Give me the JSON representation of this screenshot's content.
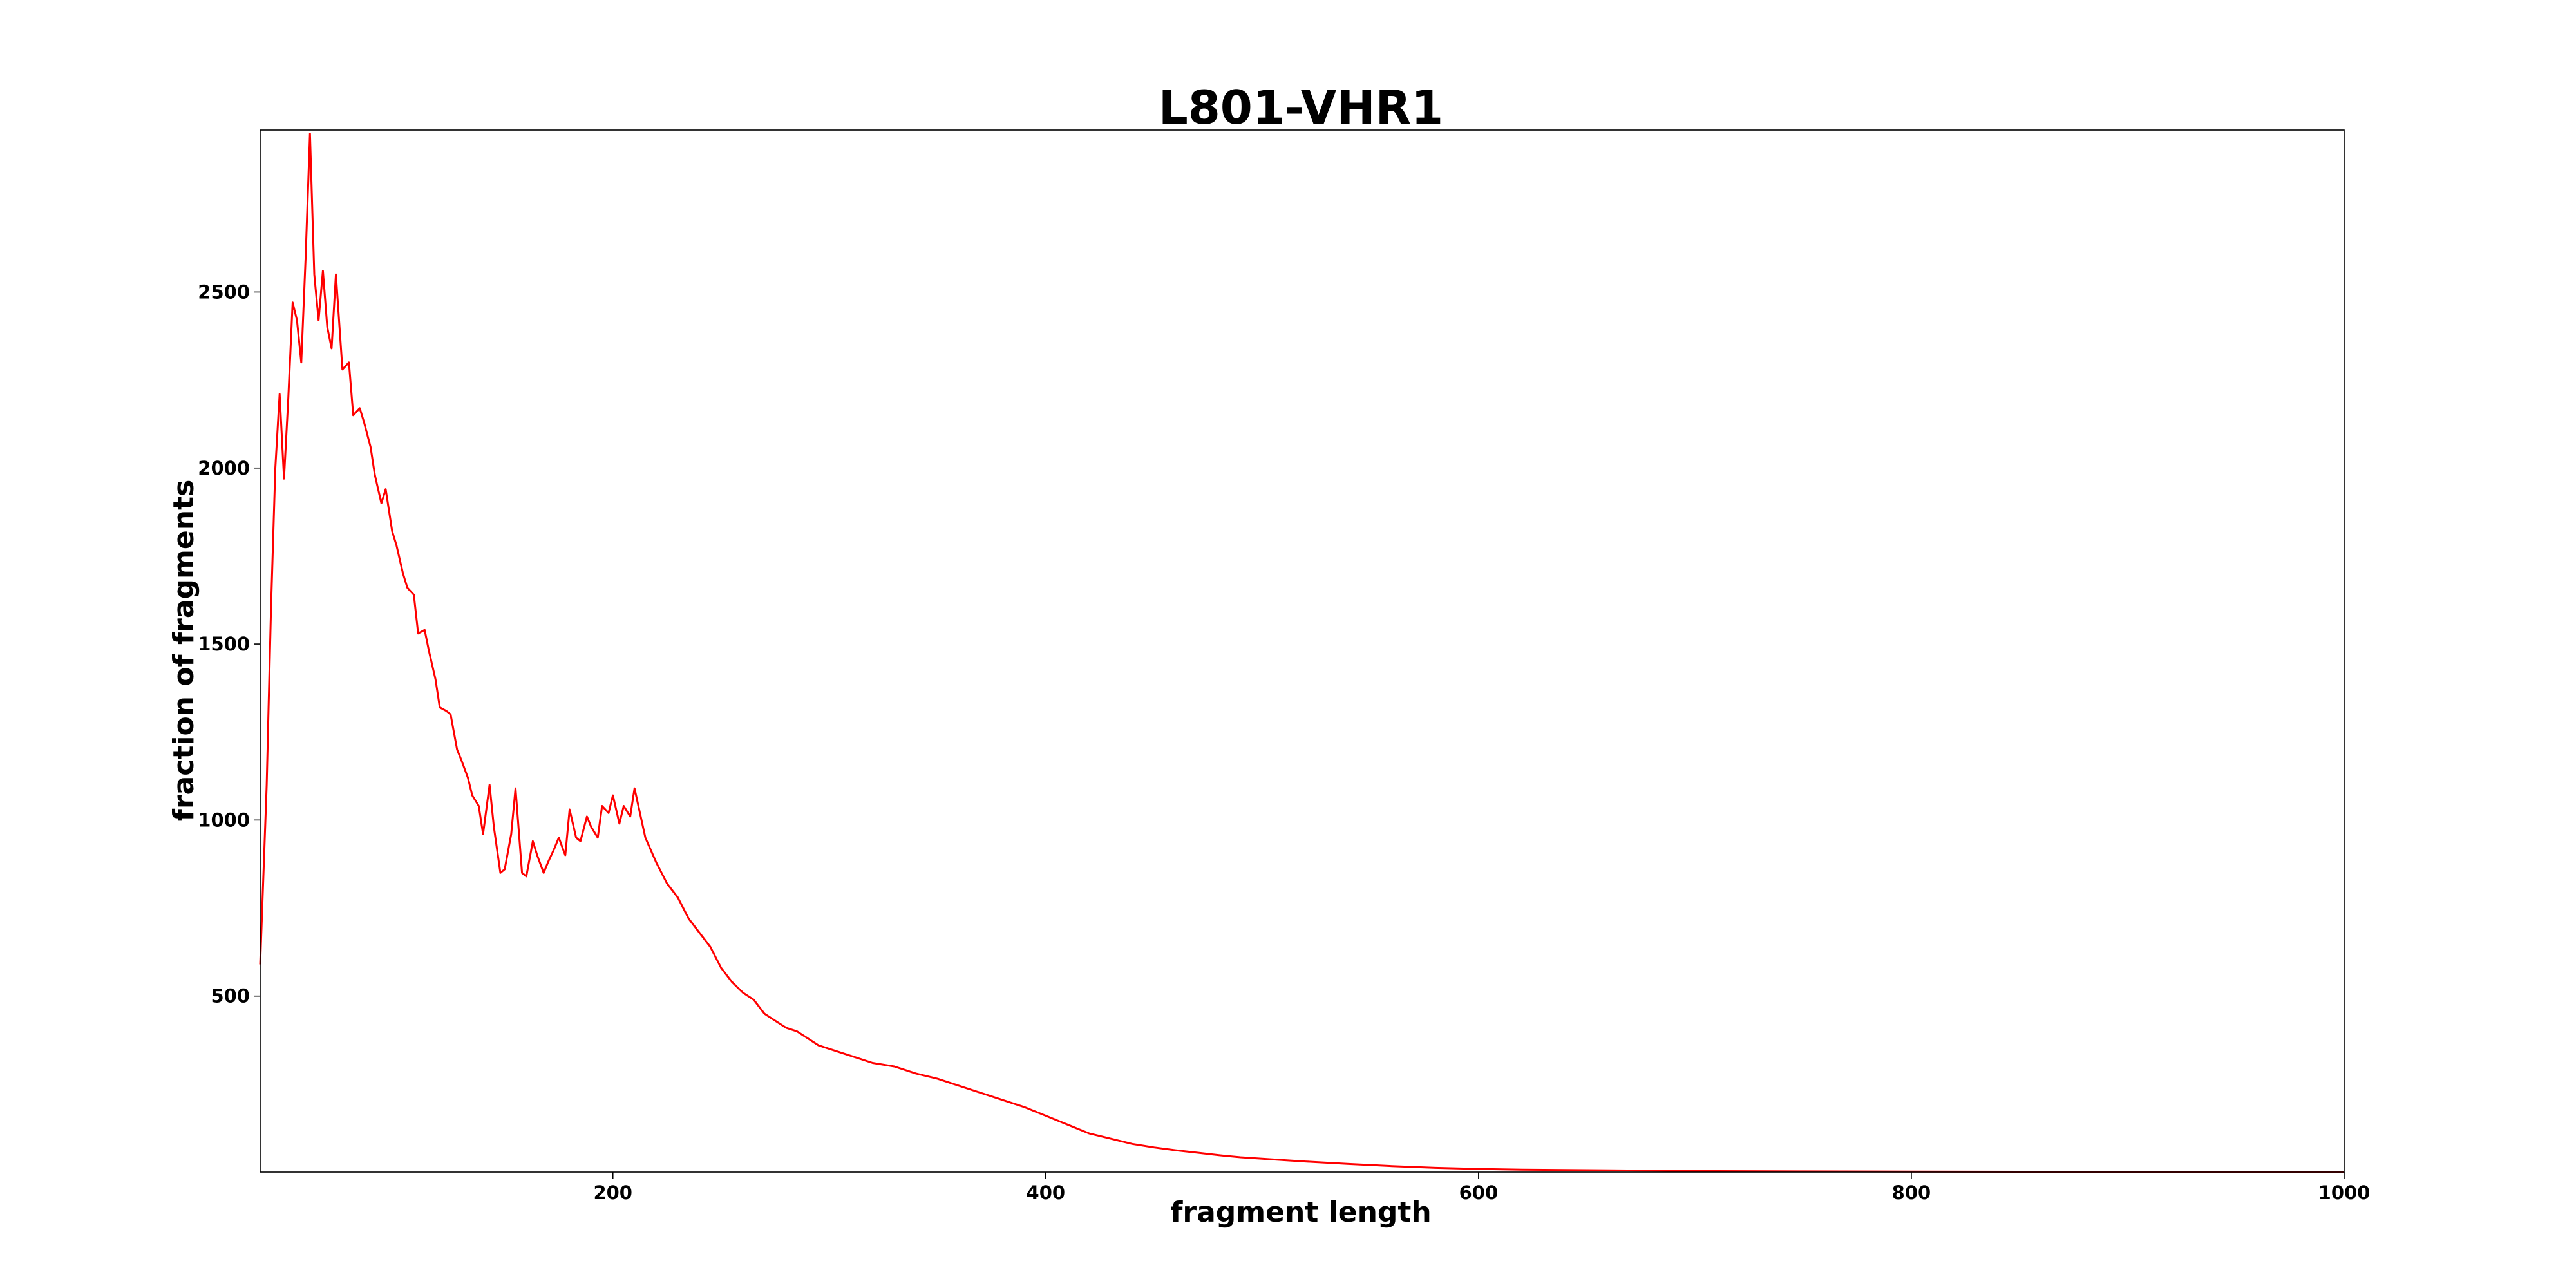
{
  "chart_data": {
    "type": "line",
    "title": "L801-VHR1",
    "xlabel": "fragment length",
    "ylabel": "fraction of fragments",
    "xlim": [
      37,
      1000
    ],
    "ylim": [
      0,
      2960
    ],
    "xticks": [
      200,
      400,
      600,
      800,
      1000
    ],
    "yticks": [
      500,
      1000,
      1500,
      2000,
      2500
    ],
    "grid": false,
    "color": "#ff0000",
    "series": [
      {
        "x": [
          37,
          40,
          42,
          44,
          46,
          48,
          50,
          52,
          54,
          56,
          58,
          60,
          62,
          64,
          66,
          68,
          70,
          72,
          75,
          78,
          80,
          83,
          85,
          88,
          90,
          93,
          95,
          98,
          100,
          103,
          105,
          108,
          110,
          113,
          115,
          118,
          120,
          123,
          125,
          128,
          130,
          133,
          135,
          138,
          140,
          143,
          145,
          148,
          150,
          153,
          155,
          158,
          160,
          163,
          165,
          168,
          170,
          173,
          175,
          178,
          180,
          183,
          185,
          188,
          190,
          193,
          195,
          198,
          200,
          203,
          205,
          208,
          210,
          215,
          220,
          225,
          230,
          235,
          240,
          245,
          250,
          255,
          260,
          265,
          270,
          275,
          280,
          285,
          290,
          295,
          300,
          310,
          320,
          330,
          340,
          350,
          360,
          370,
          380,
          390,
          400,
          410,
          420,
          430,
          440,
          450,
          460,
          470,
          480,
          490,
          500,
          520,
          540,
          560,
          580,
          600,
          620,
          640,
          660,
          680,
          700,
          750,
          800,
          850,
          900,
          950,
          1000
        ],
        "y": [
          590,
          1100,
          1600,
          2000,
          2210,
          1970,
          2200,
          2470,
          2420,
          2300,
          2600,
          2950,
          2550,
          2420,
          2560,
          2400,
          2340,
          2550,
          2280,
          2300,
          2150,
          2170,
          2130,
          2060,
          1980,
          1900,
          1940,
          1820,
          1780,
          1700,
          1660,
          1640,
          1530,
          1540,
          1480,
          1400,
          1320,
          1310,
          1300,
          1200,
          1170,
          1120,
          1070,
          1040,
          960,
          1100,
          980,
          850,
          860,
          960,
          1090,
          850,
          840,
          940,
          900,
          850,
          880,
          920,
          950,
          900,
          1030,
          950,
          940,
          1010,
          980,
          950,
          1040,
          1020,
          1070,
          990,
          1040,
          1010,
          1090,
          950,
          880,
          820,
          780,
          720,
          680,
          640,
          580,
          540,
          510,
          490,
          450,
          430,
          410,
          400,
          380,
          360,
          350,
          330,
          310,
          300,
          280,
          265,
          245,
          225,
          205,
          185,
          160,
          135,
          110,
          95,
          80,
          70,
          62,
          55,
          48,
          42,
          38,
          30,
          23,
          17,
          12,
          9,
          7,
          6,
          5,
          4,
          3,
          2,
          1.5,
          1,
          1,
          1,
          1
        ]
      }
    ]
  }
}
